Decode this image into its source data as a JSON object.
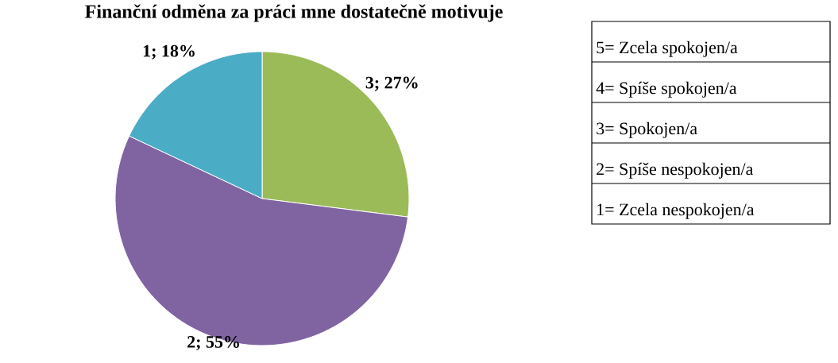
{
  "chart_data": {
    "type": "pie",
    "title": "Finanční odměna za práci mne dostatečně motivuje",
    "categories": [
      "3; 27%",
      "2; 55%",
      "1; 18%"
    ],
    "values": [
      27,
      55,
      18
    ],
    "colors": [
      "#9bbb59",
      "#8064a2",
      "#4bacc6"
    ],
    "annotations": [
      "5= Zcela spokojen/a",
      "4= Spíše spokojen/a",
      "3= Spokojen/a",
      "2= Spíše nespokojen/a",
      "1= Zcela nespokojen/a"
    ]
  }
}
